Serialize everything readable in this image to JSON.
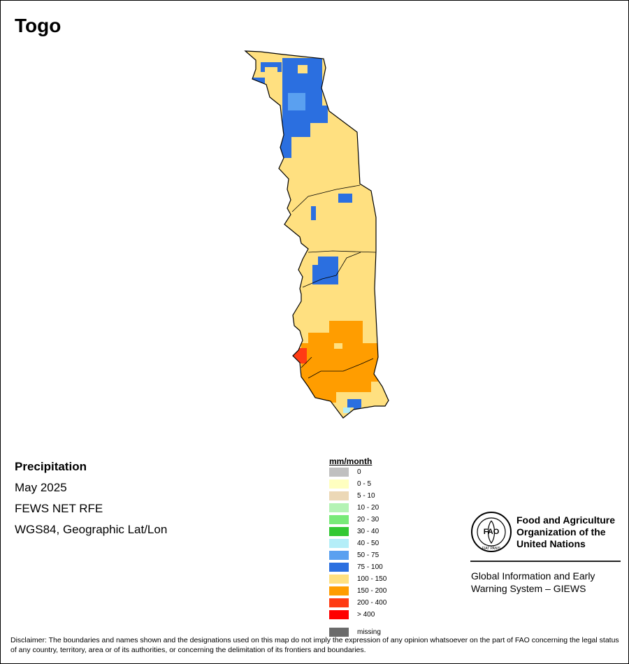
{
  "map": {
    "title": "Togo",
    "variable": "Precipitation",
    "period": "May 2025",
    "source": "FEWS NET RFE",
    "projection": "WGS84, Geographic Lat/Lon",
    "fill_classes": [
      "75 - 100",
      "50 - 75",
      "100 - 150",
      "150 - 200",
      "200 - 400",
      "40 - 50"
    ]
  },
  "legend": {
    "title": "mm/month",
    "items": [
      {
        "label": "0",
        "color": "#c0c0c0"
      },
      {
        "label": "0 - 5",
        "color": "#ffffc0"
      },
      {
        "label": "5 - 10",
        "color": "#ecd8b6"
      },
      {
        "label": "10 - 20",
        "color": "#b4f3b4"
      },
      {
        "label": "20 - 30",
        "color": "#78ea78"
      },
      {
        "label": "30 - 40",
        "color": "#32c832"
      },
      {
        "label": "40 - 50",
        "color": "#b4eef8"
      },
      {
        "label": "50 - 75",
        "color": "#5aa0f0"
      },
      {
        "label": "75 - 100",
        "color": "#2b6fe0"
      },
      {
        "label": "100 - 150",
        "color": "#ffe080"
      },
      {
        "label": "150 - 200",
        "color": "#ff9d00"
      },
      {
        "label": "200 - 400",
        "color": "#ff3c14"
      },
      {
        "label": "> 400",
        "color": "#ff0000"
      },
      {
        "label": "missing",
        "color": "#6b6b6b"
      }
    ]
  },
  "logo": {
    "org_line1": "Food and Agriculture",
    "org_line2": "Organization of the",
    "org_line3": "United Nations",
    "emblem_text": "FAO",
    "emblem_motto": "FIAT PANIS",
    "system_line1": "Global Information and Early",
    "system_line2": "Warning System – GIEWS"
  },
  "disclaimer": "Disclaimer: The boundaries and names shown and the designations used on this map do not imply the expression of any opinion whatsoever on the part of FAO concerning the legal status of any country, territory, area or of its authorities, or concerning the delimitation of its frontiers and boundaries."
}
